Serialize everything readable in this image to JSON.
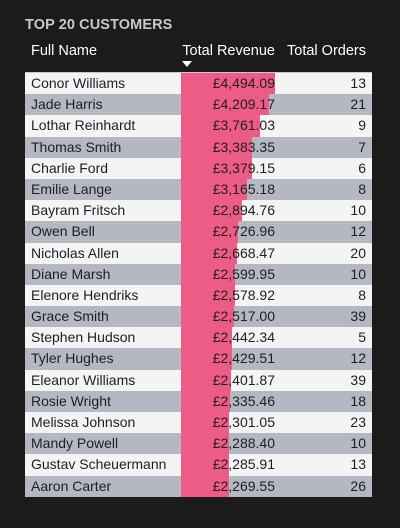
{
  "visual": {
    "title": "TOP 20 CUSTOMERS",
    "accent_color": "#ed5c86",
    "sort_indicator": "sort-descending-icon"
  },
  "table": {
    "columns": {
      "name": "Full Name",
      "revenue": "Total Revenue",
      "orders": "Total Orders"
    },
    "revenue_scale_max": 4494.09,
    "rows": [
      {
        "name": "Conor Williams",
        "revenue": "£4,494.09",
        "revenue_value": 4494.09,
        "orders": "13"
      },
      {
        "name": "Jade Harris",
        "revenue": "£4,209.17",
        "revenue_value": 4209.17,
        "orders": "21"
      },
      {
        "name": "Lothar Reinhardt",
        "revenue": "£3,761.03",
        "revenue_value": 3761.03,
        "orders": "9"
      },
      {
        "name": "Thomas Smith",
        "revenue": "£3,383.35",
        "revenue_value": 3383.35,
        "orders": "7"
      },
      {
        "name": "Charlie Ford",
        "revenue": "£3,379.15",
        "revenue_value": 3379.15,
        "orders": "6"
      },
      {
        "name": "Emilie Lange",
        "revenue": "£3,165.18",
        "revenue_value": 3165.18,
        "orders": "8"
      },
      {
        "name": "Bayram Fritsch",
        "revenue": "£2,894.76",
        "revenue_value": 2894.76,
        "orders": "10"
      },
      {
        "name": "Owen Bell",
        "revenue": "£2,726.96",
        "revenue_value": 2726.96,
        "orders": "12"
      },
      {
        "name": "Nicholas Allen",
        "revenue": "£2,668.47",
        "revenue_value": 2668.47,
        "orders": "20"
      },
      {
        "name": "Diane Marsh",
        "revenue": "£2,599.95",
        "revenue_value": 2599.95,
        "orders": "10"
      },
      {
        "name": "Elenore Hendriks",
        "revenue": "£2,578.92",
        "revenue_value": 2578.92,
        "orders": "8"
      },
      {
        "name": "Grace Smith",
        "revenue": "£2,517.00",
        "revenue_value": 2517.0,
        "orders": "39"
      },
      {
        "name": "Stephen Hudson",
        "revenue": "£2,442.34",
        "revenue_value": 2442.34,
        "orders": "5"
      },
      {
        "name": "Tyler Hughes",
        "revenue": "£2,429.51",
        "revenue_value": 2429.51,
        "orders": "12"
      },
      {
        "name": "Eleanor Williams",
        "revenue": "£2,401.87",
        "revenue_value": 2401.87,
        "orders": "39"
      },
      {
        "name": "Rosie Wright",
        "revenue": "£2,335.46",
        "revenue_value": 2335.46,
        "orders": "18"
      },
      {
        "name": "Melissa Johnson",
        "revenue": "£2,301.05",
        "revenue_value": 2301.05,
        "orders": "23"
      },
      {
        "name": "Mandy Powell",
        "revenue": "£2,288.40",
        "revenue_value": 2288.4,
        "orders": "10"
      },
      {
        "name": "Gustav Scheuermann",
        "revenue": "£2,285.91",
        "revenue_value": 2285.91,
        "orders": "13"
      },
      {
        "name": "Aaron Carter",
        "revenue": "£2,269.55",
        "revenue_value": 2269.55,
        "orders": "26"
      }
    ]
  }
}
